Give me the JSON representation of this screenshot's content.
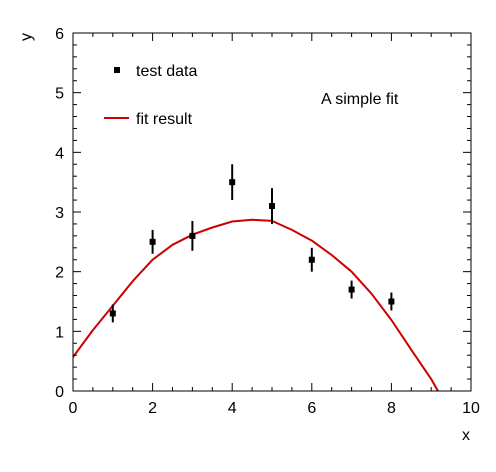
{
  "chart_data": {
    "type": "scatter",
    "xlabel": "x",
    "ylabel": "y",
    "xlim": [
      0,
      10
    ],
    "ylim": [
      0,
      6
    ],
    "xticks": [
      0,
      2,
      4,
      6,
      8,
      10
    ],
    "yticks": [
      0,
      1,
      2,
      3,
      4,
      5,
      6
    ],
    "grid": false,
    "legend_position": "top-left",
    "annotation": "A simple fit",
    "series": [
      {
        "name": "test data",
        "kind": "points-with-error-bars",
        "color": "#000000",
        "points": [
          {
            "x": 1,
            "y": 1.3,
            "err": 0.15
          },
          {
            "x": 2,
            "y": 2.5,
            "err": 0.2
          },
          {
            "x": 3,
            "y": 2.6,
            "err": 0.25
          },
          {
            "x": 4,
            "y": 3.5,
            "err": 0.3
          },
          {
            "x": 5,
            "y": 3.1,
            "err": 0.3
          },
          {
            "x": 6,
            "y": 2.2,
            "err": 0.2
          },
          {
            "x": 7,
            "y": 1.7,
            "err": 0.15
          },
          {
            "x": 8,
            "y": 1.5,
            "err": 0.15
          }
        ]
      },
      {
        "name": "fit result",
        "kind": "curve",
        "color": "#cc0000",
        "x": [
          0,
          0.5,
          1,
          1.5,
          2,
          2.5,
          3,
          3.5,
          4,
          4.5,
          5,
          5.5,
          6,
          6.5,
          7,
          7.5,
          8,
          8.5,
          9,
          9.17
        ],
        "y": [
          0.57,
          1.02,
          1.43,
          1.84,
          2.2,
          2.45,
          2.62,
          2.74,
          2.84,
          2.87,
          2.85,
          2.7,
          2.52,
          2.28,
          2.0,
          1.63,
          1.19,
          0.69,
          0.2,
          0.0
        ]
      }
    ]
  }
}
